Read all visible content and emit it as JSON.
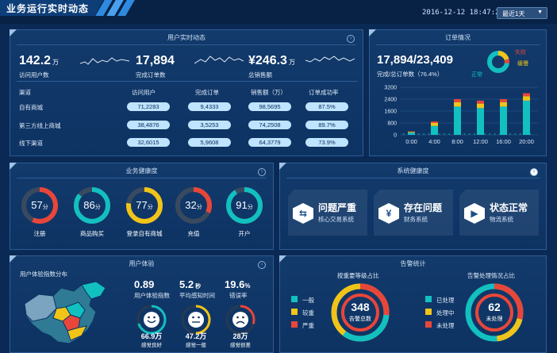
{
  "app_title": "业务运行实时动态",
  "datetime": "2016-12-12 18:47:29",
  "period_select": "最近1天",
  "realtime": {
    "title": "用户实时动态",
    "kpis": [
      {
        "value": "142.2",
        "unit": "万",
        "label": "访问用户数"
      },
      {
        "value": "17,894",
        "unit": "",
        "label": "完成订单数"
      },
      {
        "value": "¥246.3",
        "unit": "万",
        "label": "总销售额"
      }
    ],
    "columns": [
      "渠道",
      "访问用户",
      "完成订单",
      "销售额（万）",
      "订单成功率"
    ],
    "rows": [
      {
        "channel": "自有商城",
        "visits": "71,2283",
        "orders": "9,4333",
        "sales": "98,5695",
        "rate": "87.5%"
      },
      {
        "channel": "第三方线上商城",
        "visits": "38,4876",
        "orders": "3,5253",
        "sales": "74,2508",
        "rate": "89.7%"
      },
      {
        "channel": "线下渠道",
        "visits": "32,6015",
        "orders": "5,9608",
        "sales": "64,3779",
        "rate": "73.9%"
      }
    ]
  },
  "orders": {
    "title": "订单情况",
    "headline": "17,894/23,409",
    "subline": "完成/总订单数（76.4%）",
    "legend": [
      "失败",
      "缓慢",
      "正常"
    ]
  },
  "chart_data": {
    "type": "bar",
    "title": "",
    "categories": [
      "0:00",
      "4:00",
      "8:00",
      "12:00",
      "16:00",
      "20:00"
    ],
    "yticks": [
      "3200",
      "2400",
      "1600",
      "800",
      "0"
    ],
    "ylim": [
      0,
      3200
    ],
    "series": [
      {
        "name": "正常",
        "values": [
          150,
          600,
          1900,
          1800,
          1900,
          2300
        ],
        "color": "#12c0c0"
      },
      {
        "name": "缓慢",
        "values": [
          50,
          200,
          300,
          300,
          300,
          300
        ],
        "color": "#f0c419"
      },
      {
        "name": "失败",
        "values": [
          30,
          100,
          200,
          200,
          200,
          200
        ],
        "color": "#e8463a"
      }
    ]
  },
  "health": {
    "title": "业务健康度",
    "gauges": [
      {
        "value": "57",
        "unit": "分",
        "label": "注册",
        "pct": 0.57,
        "color": "#e8463a"
      },
      {
        "value": "86",
        "unit": "分",
        "label": "商品购买",
        "pct": 0.86,
        "color": "#12c0c0"
      },
      {
        "value": "77",
        "unit": "分",
        "label": "登录自有商城",
        "pct": 0.77,
        "color": "#f0c419"
      },
      {
        "value": "32",
        "unit": "分",
        "label": "充值",
        "pct": 0.32,
        "color": "#e8463a"
      },
      {
        "value": "91",
        "unit": "分",
        "label": "开户",
        "pct": 0.91,
        "color": "#12c0c0"
      }
    ]
  },
  "system": {
    "title": "系统健康度",
    "items": [
      {
        "status": "问题严重",
        "system": "核心交易系统",
        "icon": "⇆"
      },
      {
        "status": "存在问题",
        "system": "财务系统",
        "icon": "¥"
      },
      {
        "status": "状态正常",
        "system": "物流系统",
        "icon": "▶"
      }
    ]
  },
  "experience": {
    "title": "用户体验",
    "map_title": "用户体验指数分布",
    "metrics": [
      {
        "value": "0.89",
        "unit": "",
        "label": "用户体验指数"
      },
      {
        "value": "5.2",
        "unit": "秒",
        "label": "平均感知时间"
      },
      {
        "value": "19.6",
        "unit": "%",
        "label": "错误率"
      }
    ],
    "faces": [
      {
        "value": "66.9万",
        "label": "感觉良好",
        "pct": 0.7,
        "color": "#12c0c0"
      },
      {
        "value": "47.2万",
        "label": "感觉一般",
        "pct": 0.5,
        "color": "#f0c419"
      },
      {
        "value": "28万",
        "label": "感觉很差",
        "pct": 0.3,
        "color": "#e8463a"
      }
    ]
  },
  "alerts": {
    "title": "告警统计",
    "left_title": "按重要等级占比",
    "left_center_value": "348",
    "left_center_label": "告警总数",
    "left_legend": [
      {
        "label": "一般",
        "color": "#12c0c0"
      },
      {
        "label": "较重",
        "color": "#f0c419"
      },
      {
        "label": "严重",
        "color": "#e8463a"
      }
    ],
    "right_title": "告警处理情况占比",
    "right_center_value": "62",
    "right_center_label": "未处理",
    "right_legend": [
      {
        "label": "已处理",
        "color": "#12c0c0"
      },
      {
        "label": "处理中",
        "color": "#f0c419"
      },
      {
        "label": "未处理",
        "color": "#e8463a"
      }
    ]
  }
}
